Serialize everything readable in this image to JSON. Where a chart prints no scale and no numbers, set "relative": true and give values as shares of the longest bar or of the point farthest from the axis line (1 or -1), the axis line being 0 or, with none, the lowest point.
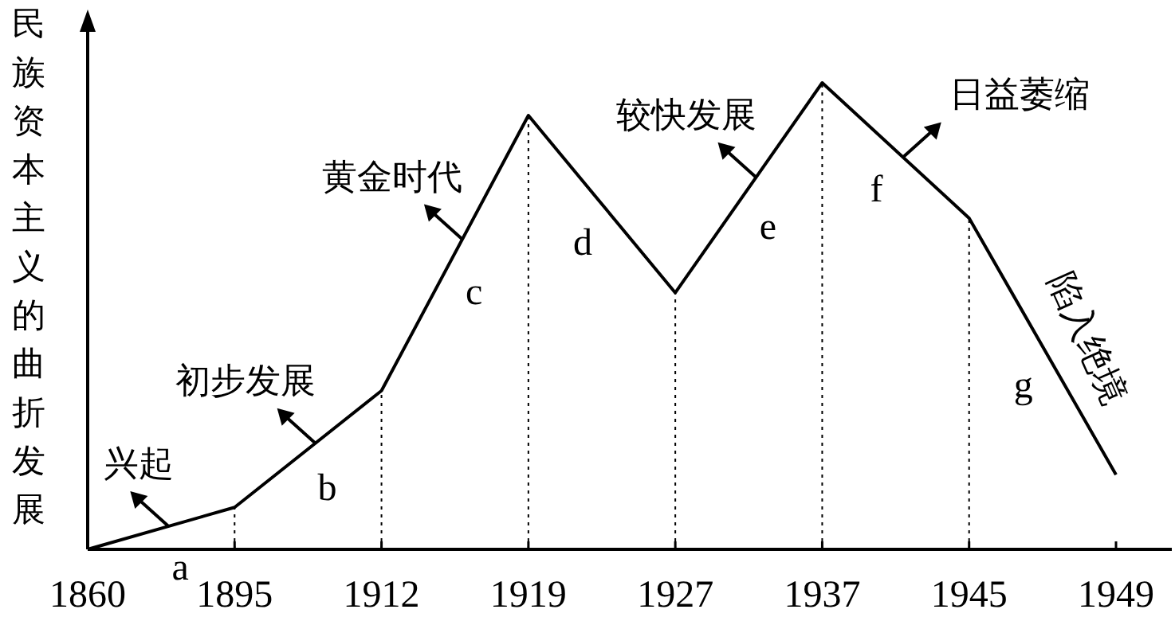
{
  "chart_data": {
    "type": "line",
    "relative": true,
    "ylabel": "民族资本主义的曲折发展",
    "categories": [
      "1860",
      "1895",
      "1912",
      "1919",
      "1927",
      "1937",
      "1945",
      "1949"
    ],
    "series": [
      {
        "color": "#000000",
        "values": [
          0,
          0.09,
          0.34,
          0.93,
          0.55,
          1,
          0.71,
          0.16
        ]
      }
    ],
    "ref_lines": [
      {
        "axis": "x",
        "value": "1895",
        "line_style": "dotted"
      },
      {
        "axis": "x",
        "value": "1912",
        "line_style": "dotted"
      },
      {
        "axis": "x",
        "value": "1919",
        "line_style": "dotted"
      },
      {
        "axis": "x",
        "value": "1927",
        "line_style": "dotted"
      },
      {
        "axis": "x",
        "value": "1937",
        "line_style": "dotted"
      },
      {
        "axis": "x",
        "value": "1945",
        "line_style": "dotted"
      }
    ],
    "annotations": [
      "a",
      "b",
      "c",
      "d",
      "e",
      "f",
      "g",
      "兴起",
      "初步发展",
      "黄金时代",
      "较快发展",
      "日益萎缩",
      "陷入绝境"
    ],
    "line_style": "solid"
  }
}
